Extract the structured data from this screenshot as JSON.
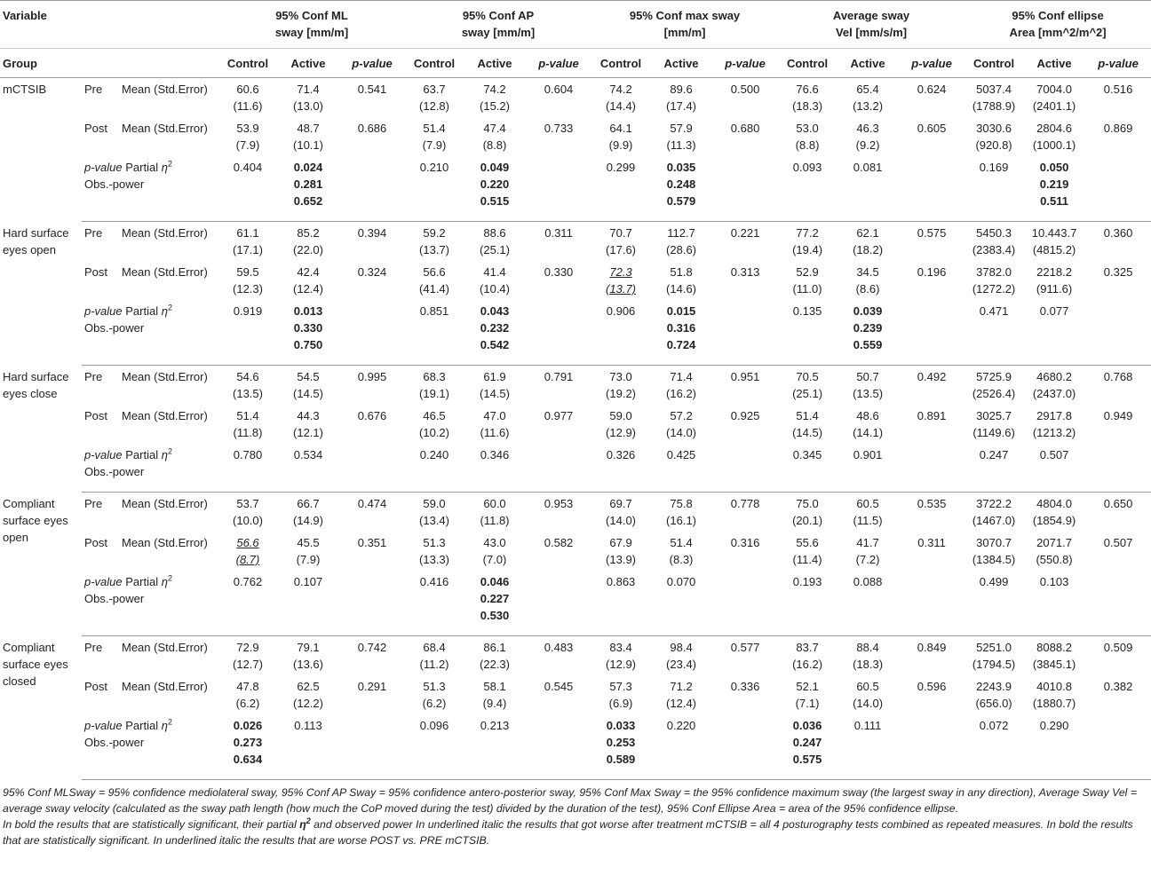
{
  "header": {
    "variable": "Variable",
    "group": "Group",
    "measures": [
      [
        "95% Conf ML",
        "sway [mm/m]"
      ],
      [
        "95% Conf AP",
        "sway [mm/m]"
      ],
      [
        "95% Conf max sway",
        "[mm/m]"
      ],
      [
        "Average sway",
        "Vel [mm/s/m]"
      ],
      [
        "95% Conf ellipse",
        "Area [mm^2/m^2]"
      ]
    ],
    "sub": [
      "Control",
      "Active",
      "p-value"
    ]
  },
  "row_labels": {
    "pre": "Pre",
    "post": "Post",
    "mean": "Mean (Std.Error)",
    "p_value": "p-value",
    "partial": "Partial",
    "eta": "η",
    "eta_exp": "2",
    "power": "Obs.-power"
  },
  "blocks": [
    {
      "name": "mCTSIB",
      "pre": [
        [
          "60.6",
          "(11.6)"
        ],
        [
          "71.4",
          "(13.0)"
        ],
        "0.541",
        [
          "63.7",
          "(12.8)"
        ],
        [
          "74.2",
          "(15.2)"
        ],
        "0.604",
        [
          "74.2",
          "(14.4)"
        ],
        [
          "89.6",
          "(17.4)"
        ],
        "0.500",
        [
          "76.6",
          "(18.3)"
        ],
        [
          "65.4",
          "(13.2)"
        ],
        "0.624",
        [
          "5037.4",
          "(1788.9)"
        ],
        [
          "7004.0",
          "(2401.1)"
        ],
        "0.516"
      ],
      "post": [
        [
          "53.9",
          "(7.9)"
        ],
        [
          "48.7",
          "(10.1)"
        ],
        "0.686",
        [
          "51.4",
          "(7.9)"
        ],
        [
          "47.4",
          "(8.8)"
        ],
        "0.733",
        [
          "64.1",
          "(9.9)"
        ],
        [
          "57.9",
          "(11.3)"
        ],
        "0.680",
        [
          "53.0",
          "(8.8)"
        ],
        [
          "46.3",
          "(9.2)"
        ],
        "0.605",
        [
          "3030.6",
          "(920.8)"
        ],
        [
          "2804.6",
          "(1000.1)"
        ],
        "0.869"
      ],
      "stats": [
        [
          [
            "0.404"
          ],
          {
            "bold": [
              "0.024",
              "0.281",
              "0.652"
            ]
          }
        ],
        [
          [
            "0.210"
          ],
          {
            "bold": [
              "0.049",
              "0.220",
              "0.515"
            ]
          }
        ],
        [
          [
            "0.299"
          ],
          {
            "bold": [
              "0.035",
              "0.248",
              "0.579"
            ]
          }
        ],
        [
          [
            "0.093"
          ],
          [
            "0.081"
          ]
        ],
        [
          [
            "0.169"
          ],
          {
            "bold": [
              "0.050",
              "0.219",
              "0.511"
            ]
          }
        ]
      ]
    },
    {
      "name": "Hard surface eyes open",
      "pre": [
        [
          "61.1",
          "(17.1)"
        ],
        [
          "85.2",
          "(22.0)"
        ],
        "0.394",
        [
          "59.2",
          "(13.7)"
        ],
        [
          "88.6",
          "(25.1)"
        ],
        "0.311",
        [
          "70.7",
          "(17.6)"
        ],
        [
          "112.7",
          "(28.6)"
        ],
        "0.221",
        [
          "77.2",
          "(19.4)"
        ],
        [
          "62.1",
          "(18.2)"
        ],
        "0.575",
        [
          "5450.3",
          "(2383.4)"
        ],
        [
          "10.443.7",
          "(4815.2)"
        ],
        "0.360"
      ],
      "post": [
        [
          "59.5",
          "(12.3)"
        ],
        [
          "42.4",
          "(12.4)"
        ],
        "0.324",
        [
          "56.6",
          "(41.4)"
        ],
        [
          "41.4",
          "(10.4)"
        ],
        "0.330",
        {
          "underline": [
            "72.3",
            "(13.7)"
          ]
        },
        [
          "51.8",
          "(14.6)"
        ],
        "0.313",
        [
          "52.9",
          "(11.0)"
        ],
        [
          "34.5",
          "(8.6)"
        ],
        "0.196",
        [
          "3782.0",
          "(1272.2)"
        ],
        [
          "2218.2",
          "(911.6)"
        ],
        "0.325"
      ],
      "stats": [
        [
          [
            "0.919"
          ],
          {
            "bold": [
              "0.013",
              "0.330",
              "0.750"
            ]
          }
        ],
        [
          [
            "0.851"
          ],
          {
            "bold": [
              "0.043",
              "0.232",
              "0.542"
            ]
          }
        ],
        [
          [
            "0.906"
          ],
          {
            "bold": [
              "0.015",
              "0.316",
              "0.724"
            ]
          }
        ],
        [
          [
            "0.135"
          ],
          {
            "bold": [
              "0.039",
              "0.239",
              "0.559"
            ]
          }
        ],
        [
          [
            "0.471"
          ],
          [
            "0.077"
          ]
        ]
      ]
    },
    {
      "name": "Hard surface eyes close",
      "pre": [
        [
          "54.6",
          "(13.5)"
        ],
        [
          "54.5",
          "(14.5)"
        ],
        "0.995",
        [
          "68.3",
          "(19.1)"
        ],
        [
          "61.9",
          "(14.5)"
        ],
        "0.791",
        [
          "73.0",
          "(19.2)"
        ],
        [
          "71.4",
          "(16.2)"
        ],
        "0.951",
        [
          "70.5",
          "(25.1)"
        ],
        [
          "50.7",
          "(13.5)"
        ],
        "0.492",
        [
          "5725.9",
          "(2526.4)"
        ],
        [
          "4680.2",
          "(2437.0)"
        ],
        "0.768"
      ],
      "post": [
        [
          "51.4",
          "(11.8)"
        ],
        [
          "44.3",
          "(12.1)"
        ],
        "0.676",
        [
          "46.5",
          "(10.2)"
        ],
        [
          "47.0",
          "(11.6)"
        ],
        "0.977",
        [
          "59.0",
          "(12.9)"
        ],
        [
          "57.2",
          "(14.0)"
        ],
        "0.925",
        [
          "51.4",
          "(14.5)"
        ],
        [
          "48.6",
          "(14.1)"
        ],
        "0.891",
        [
          "3025.7",
          "(1149.6)"
        ],
        [
          "2917.8",
          "(1213.2)"
        ],
        "0.949"
      ],
      "stats": [
        [
          [
            "0.780"
          ],
          [
            "0.534"
          ]
        ],
        [
          [
            "0.240"
          ],
          [
            "0.346"
          ]
        ],
        [
          [
            "0.326"
          ],
          [
            "0.425"
          ]
        ],
        [
          [
            "0.345"
          ],
          [
            "0.901"
          ]
        ],
        [
          [
            "0.247"
          ],
          [
            "0.507"
          ]
        ]
      ]
    },
    {
      "name": "Compliant surface eyes open",
      "pre": [
        [
          "53.7",
          "(10.0)"
        ],
        [
          "66.7",
          "(14.9)"
        ],
        "0.474",
        [
          "59.0",
          "(13.4)"
        ],
        [
          "60.0",
          "(11.8)"
        ],
        "0.953",
        [
          "69.7",
          "(14.0)"
        ],
        [
          "75.8",
          "(16.1)"
        ],
        "0.778",
        [
          "75.0",
          "(20.1)"
        ],
        [
          "60.5",
          "(11.5)"
        ],
        "0.535",
        [
          "3722.2",
          "(1467.0)"
        ],
        [
          "4804.0",
          "(1854.9)"
        ],
        "0.650"
      ],
      "post": [
        {
          "underline": [
            "56.6",
            "(8.7)"
          ]
        },
        [
          "45.5",
          "(7.9)"
        ],
        "0.351",
        [
          "51.3",
          "(13.3)"
        ],
        [
          "43.0",
          "(7.0)"
        ],
        "0.582",
        [
          "67.9",
          "(13.9)"
        ],
        [
          "51.4",
          "(8.3)"
        ],
        "0.316",
        [
          "55.6",
          "(11.4)"
        ],
        [
          "41.7",
          "(7.2)"
        ],
        "0.311",
        [
          "3070.7",
          "(1384.5)"
        ],
        [
          "2071.7",
          "(550.8)"
        ],
        "0.507"
      ],
      "stats": [
        [
          [
            "0.762"
          ],
          [
            "0.107"
          ]
        ],
        [
          [
            "0.416"
          ],
          {
            "bold": [
              "0.046",
              "0.227",
              "0.530"
            ]
          }
        ],
        [
          [
            "0.863"
          ],
          [
            "0.070"
          ]
        ],
        [
          [
            "0.193"
          ],
          [
            "0.088"
          ]
        ],
        [
          [
            "0.499"
          ],
          [
            "0.103"
          ]
        ]
      ]
    },
    {
      "name": "Compliant surface eyes closed",
      "pre": [
        [
          "72.9",
          "(12.7)"
        ],
        [
          "79.1",
          "(13.6)"
        ],
        "0.742",
        [
          "68.4",
          "(11.2)"
        ],
        [
          "86.1",
          "(22.3)"
        ],
        "0.483",
        [
          "83.4",
          "(12.9)"
        ],
        [
          "98.4",
          "(23.4)"
        ],
        "0.577",
        [
          "83.7",
          "(16.2)"
        ],
        [
          "88.4",
          "(18.3)"
        ],
        "0.849",
        [
          "5251.0",
          "(1794.5)"
        ],
        [
          "8088.2",
          "(3845.1)"
        ],
        "0.509"
      ],
      "post": [
        [
          "47.8",
          "(6.2)"
        ],
        [
          "62.5",
          "(12.2)"
        ],
        "0.291",
        [
          "51.3",
          "(6.2)"
        ],
        [
          "58.1",
          "(9.4)"
        ],
        "0.545",
        [
          "57.3",
          "(6.9)"
        ],
        [
          "71.2",
          "(12.4)"
        ],
        "0.336",
        [
          "52.1",
          "(7.1)"
        ],
        [
          "60.5",
          "(14.0)"
        ],
        "0.596",
        [
          "2243.9",
          "(656.0)"
        ],
        [
          "4010.8",
          "(1880.7)"
        ],
        "0.382"
      ],
      "stats": [
        [
          {
            "bold": [
              "0.026",
              "0.273",
              "0.634"
            ]
          },
          [
            "0.113"
          ]
        ],
        [
          [
            "0.096"
          ],
          [
            "0.213"
          ]
        ],
        [
          {
            "bold": [
              "0.033",
              "0.253",
              "0.589"
            ]
          },
          [
            "0.220"
          ]
        ],
        [
          {
            "bold": [
              "0.036",
              "0.247",
              "0.575"
            ]
          },
          [
            "0.111"
          ]
        ],
        [
          [
            "0.072"
          ],
          [
            "0.290"
          ]
        ]
      ]
    }
  ],
  "notes": {
    "definitions": "95% Conf MLSway = 95% confidence mediolateral sway, 95% Conf AP Sway = 95% confidence antero-posterior sway, 95% Conf Max Sway = the 95% confidence maximum sway (the largest sway in any direction), Average Sway Vel = average sway velocity (calculated as the sway path length (how much the CoP moved during the test) divided by the duration of the test), 95% Conf Ellipse Area = area of the 95% confidence ellipse.",
    "bold_a": "In bold the results that are statistically significant, their partial ",
    "eta": "η",
    "eta_exp": "2",
    "bold_b": " and observed power In underlined italic the results that got worse after treatment mCTSIB = all 4 posturography tests combined as repeated measures. In bold the results that are statistically significant. In underlined italic the results that are worse POST vs. PRE mCTSIB."
  }
}
